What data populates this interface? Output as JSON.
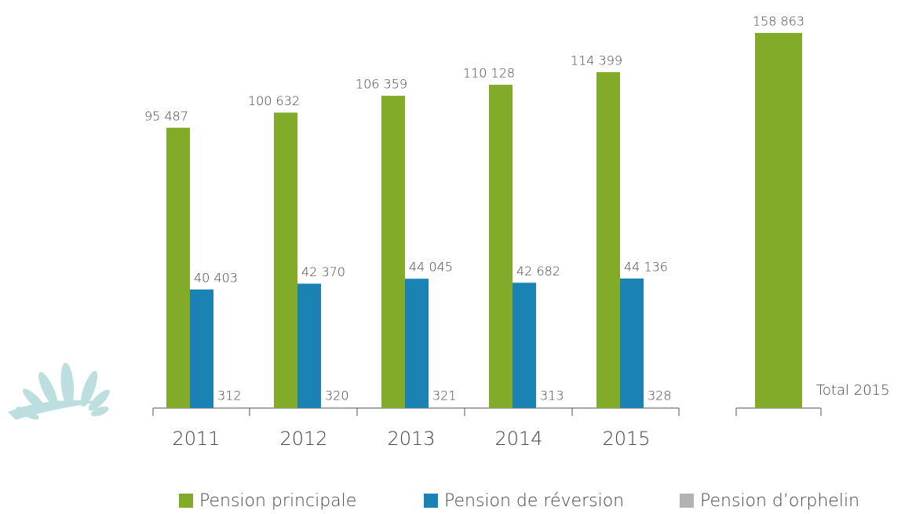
{
  "chart_data": [
    {
      "type": "bar",
      "categories": [
        "2011",
        "2012",
        "2013",
        "2014",
        "2015"
      ],
      "series": [
        {
          "name": "Pension principale",
          "color": "#82ab2a",
          "values": [
            95487,
            100632,
            106359,
            110128,
            114399
          ],
          "value_labels": [
            "95 487",
            "100 632",
            "106 359",
            "110 128",
            "114 399"
          ]
        },
        {
          "name": "Pension de réversion",
          "color": "#1a83b3",
          "values": [
            40403,
            42370,
            44045,
            42682,
            44136
          ],
          "value_labels": [
            "40 403",
            "42 370",
            "44 045",
            "42 682",
            "44 136"
          ]
        },
        {
          "name": "Pension d’orphelin",
          "color": "#b3b3b3",
          "values": [
            312,
            320,
            321,
            313,
            328
          ],
          "value_labels": [
            "312",
            "320",
            "321",
            "313",
            "328"
          ]
        }
      ]
    },
    {
      "type": "bar",
      "categories": [
        "Total 2015"
      ],
      "series": [
        {
          "color": "#82ab2a",
          "values": [
            158863
          ],
          "value_labels": [
            "158 863"
          ]
        }
      ]
    }
  ]
}
